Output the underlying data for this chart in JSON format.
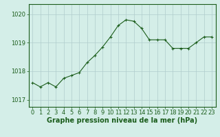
{
  "x": [
    0,
    1,
    2,
    3,
    4,
    5,
    6,
    7,
    8,
    9,
    10,
    11,
    12,
    13,
    14,
    15,
    16,
    17,
    18,
    19,
    20,
    21,
    22,
    23
  ],
  "y": [
    1017.6,
    1017.45,
    1017.6,
    1017.45,
    1017.75,
    1017.85,
    1017.95,
    1018.3,
    1018.55,
    1018.85,
    1019.2,
    1019.6,
    1019.8,
    1019.75,
    1019.5,
    1019.1,
    1019.1,
    1019.1,
    1018.8,
    1018.8,
    1018.8,
    1019.0,
    1019.2,
    1019.2
  ],
  "line_color": "#1a5c1a",
  "marker": "+",
  "bg_color": "#d4eee8",
  "grid_color": "#b0cccc",
  "axis_color": "#1a5c1a",
  "xlabel": "Graphe pression niveau de la mer (hPa)",
  "xlabel_fontsize": 7,
  "tick_fontsize": 6,
  "ylim_min": 1016.75,
  "ylim_max": 1020.35,
  "xlim_min": -0.5,
  "xlim_max": 23.5,
  "yticks": [
    1017,
    1018,
    1019,
    1020
  ],
  "xticks": [
    0,
    1,
    2,
    3,
    4,
    5,
    6,
    7,
    8,
    9,
    10,
    11,
    12,
    13,
    14,
    15,
    16,
    17,
    18,
    19,
    20,
    21,
    22,
    23
  ]
}
